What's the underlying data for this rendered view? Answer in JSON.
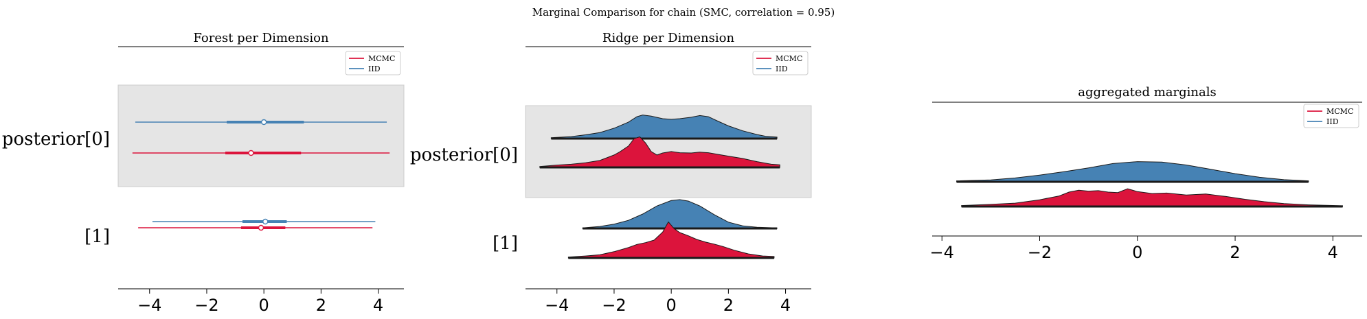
{
  "suptitle": "Marginal Comparison for chain (SMC, correlation = 0.95)",
  "colors": {
    "mcmc": "#dc143c",
    "iid": "#4682b4",
    "band": "#e5e5e5"
  },
  "chart_data": [
    {
      "type": "forest",
      "title": "Forest per Dimension",
      "xlim": [
        -5.1,
        4.9
      ],
      "xticks": [
        "−4",
        "−2",
        "0",
        "2",
        "4"
      ],
      "xtick_values": [
        -4,
        -2,
        0,
        2,
        4
      ],
      "legend": {
        "position": "top-right",
        "entries": [
          "MCMC",
          "IID"
        ]
      },
      "rows": [
        {
          "label": "posterior[0]",
          "shaded": true,
          "series": [
            {
              "name": "IID",
              "hdi": [
                -4.5,
                4.3
              ],
              "iqr": [
                -1.3,
                1.4
              ],
              "point": 0.0
            },
            {
              "name": "MCMC",
              "hdi": [
                -4.6,
                4.4
              ],
              "iqr": [
                -1.35,
                1.3
              ],
              "point": -0.45
            }
          ]
        },
        {
          "label": "[1]",
          "shaded": false,
          "series": [
            {
              "name": "IID",
              "hdi": [
                -3.9,
                3.9
              ],
              "iqr": [
                -0.75,
                0.8
              ],
              "point": 0.05
            },
            {
              "name": "MCMC",
              "hdi": [
                -4.4,
                3.8
              ],
              "iqr": [
                -0.8,
                0.75
              ],
              "point": -0.1
            }
          ]
        }
      ]
    },
    {
      "type": "ridgeline",
      "title": "Ridge per Dimension",
      "xlim": [
        -5.1,
        4.9
      ],
      "xticks": [
        "−4",
        "−2",
        "0",
        "2",
        "4"
      ],
      "xtick_values": [
        -4,
        -2,
        0,
        2,
        4
      ],
      "legend": {
        "position": "top-right",
        "entries": [
          "MCMC",
          "IID"
        ]
      },
      "rows": [
        {
          "label": "posterior[0]",
          "shaded": true,
          "series": [
            {
              "name": "IID",
              "x": [
                -4.2,
                -3.5,
                -3,
                -2.5,
                -2,
                -1.5,
                -1.2,
                -1,
                -0.7,
                -0.3,
                0,
                0.3,
                0.7,
                1,
                1.3,
                1.6,
                2,
                2.5,
                3,
                3.3,
                3.7
              ],
              "y": [
                0.03,
                0.07,
                0.13,
                0.21,
                0.36,
                0.57,
                0.76,
                0.82,
                0.78,
                0.69,
                0.67,
                0.69,
                0.74,
                0.8,
                0.76,
                0.62,
                0.44,
                0.27,
                0.14,
                0.08,
                0.05
              ]
            },
            {
              "name": "MCMC",
              "x": [
                -4.6,
                -4,
                -3.5,
                -3,
                -2.5,
                -2,
                -1.8,
                -1.5,
                -1.3,
                -1.1,
                -0.9,
                -0.7,
                -0.5,
                -0.3,
                0,
                0.3,
                0.7,
                1,
                1.3,
                1.7,
                2,
                2.5,
                3,
                3.5,
                3.8
              ],
              "y": [
                0.03,
                0.08,
                0.11,
                0.16,
                0.24,
                0.43,
                0.54,
                0.74,
                1.0,
                1.06,
                0.85,
                0.55,
                0.43,
                0.5,
                0.55,
                0.51,
                0.5,
                0.53,
                0.51,
                0.44,
                0.39,
                0.31,
                0.2,
                0.11,
                0.09
              ]
            }
          ]
        },
        {
          "label": "[1]",
          "shaded": false,
          "series": [
            {
              "name": "IID",
              "x": [
                -3.1,
                -2.5,
                -2,
                -1.5,
                -1,
                -0.5,
                0,
                0.3,
                0.6,
                1,
                1.5,
                2,
                2.5,
                3,
                3.7
              ],
              "y": [
                0.02,
                0.07,
                0.15,
                0.28,
                0.5,
                0.78,
                0.97,
                1.0,
                0.95,
                0.78,
                0.48,
                0.22,
                0.09,
                0.04,
                0.02
              ]
            },
            {
              "name": "MCMC",
              "x": [
                -3.6,
                -3,
                -2.5,
                -2,
                -1.5,
                -1.2,
                -0.9,
                -0.6,
                -0.3,
                -0.1,
                0.1,
                0.3,
                0.6,
                0.9,
                1.2,
                1.5,
                1.8,
                2.2,
                2.7,
                3.2,
                3.6
              ],
              "y": [
                0.03,
                0.07,
                0.11,
                0.22,
                0.36,
                0.47,
                0.53,
                0.62,
                0.9,
                1.25,
                1.02,
                0.88,
                0.77,
                0.64,
                0.55,
                0.48,
                0.4,
                0.27,
                0.14,
                0.07,
                0.05
              ]
            }
          ]
        }
      ]
    },
    {
      "type": "ridgeline",
      "title": "aggregated marginals",
      "xlim": [
        -4.2,
        4.6
      ],
      "xticks": [
        "−4",
        "−2",
        "0",
        "2",
        "4"
      ],
      "xtick_values": [
        -4,
        -2,
        0,
        2,
        4
      ],
      "legend": {
        "position": "top-right",
        "entries": [
          "MCMC",
          "IID"
        ]
      },
      "rows": [
        {
          "label": "",
          "shaded": false,
          "series": [
            {
              "name": "IID",
              "x": [
                -3.7,
                -3,
                -2.5,
                -2,
                -1.5,
                -1,
                -0.5,
                0,
                0.5,
                1,
                1.5,
                2,
                2.5,
                3,
                3.5
              ],
              "y": [
                0.04,
                0.08,
                0.16,
                0.28,
                0.42,
                0.58,
                0.76,
                0.84,
                0.82,
                0.7,
                0.52,
                0.34,
                0.19,
                0.09,
                0.04
              ]
            },
            {
              "name": "MCMC",
              "x": [
                -3.6,
                -3,
                -2.5,
                -2,
                -1.6,
                -1.4,
                -1.2,
                -1,
                -0.8,
                -0.6,
                -0.4,
                -0.2,
                0,
                0.3,
                0.6,
                1,
                1.4,
                1.8,
                2.2,
                2.6,
                3,
                3.5,
                4.2
              ],
              "y": [
                0.04,
                0.09,
                0.14,
                0.28,
                0.44,
                0.6,
                0.68,
                0.64,
                0.66,
                0.6,
                0.58,
                0.74,
                0.62,
                0.54,
                0.56,
                0.48,
                0.52,
                0.42,
                0.3,
                0.2,
                0.12,
                0.07,
                0.03
              ]
            }
          ]
        }
      ]
    }
  ]
}
